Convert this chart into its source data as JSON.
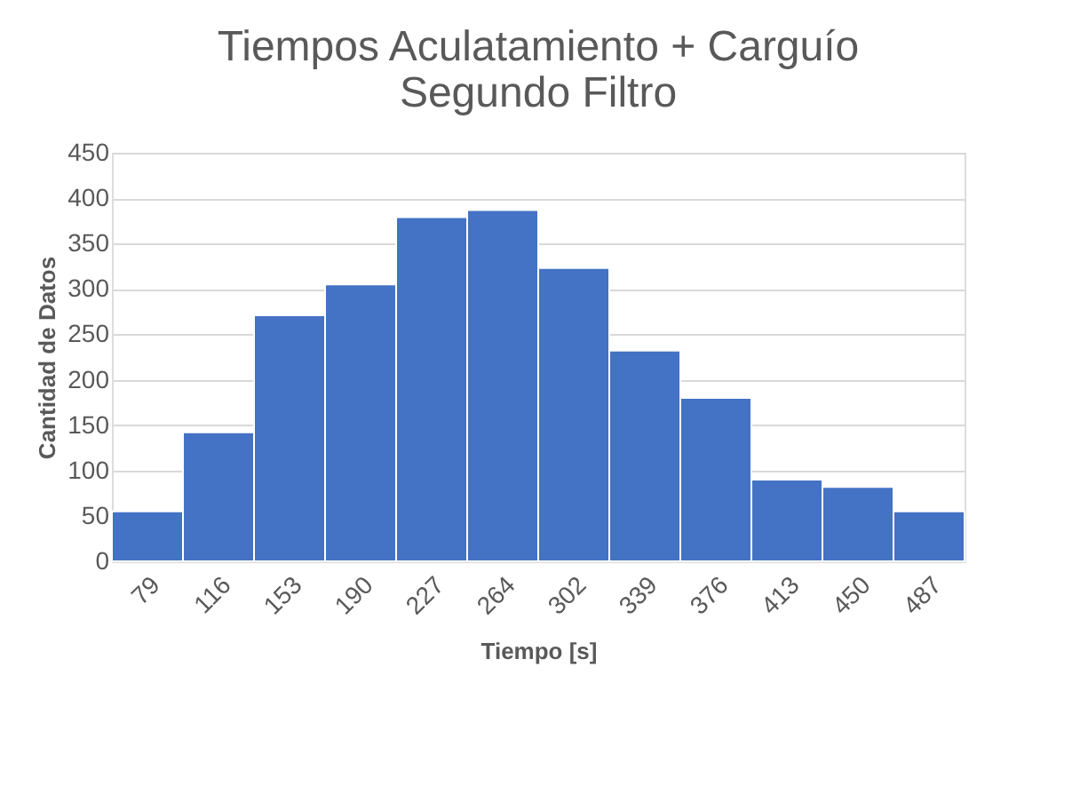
{
  "chart_data": {
    "type": "bar",
    "title": [
      "Tiempos Aculatamiento + Carguío",
      "Segundo Filtro"
    ],
    "xlabel": "Tiempo [s]",
    "ylabel": "Cantidad de Datos",
    "categories": [
      "79",
      "116",
      "153",
      "190",
      "227",
      "264",
      "302",
      "339",
      "376",
      "413",
      "450",
      "487"
    ],
    "values": [
      55,
      142,
      271,
      305,
      379,
      387,
      323,
      232,
      180,
      90,
      82,
      55
    ],
    "color": "#4472c4",
    "ylim": [
      0,
      450
    ],
    "yticks": [
      0,
      50,
      100,
      150,
      200,
      250,
      300,
      350,
      400,
      450
    ],
    "grid": "y"
  }
}
